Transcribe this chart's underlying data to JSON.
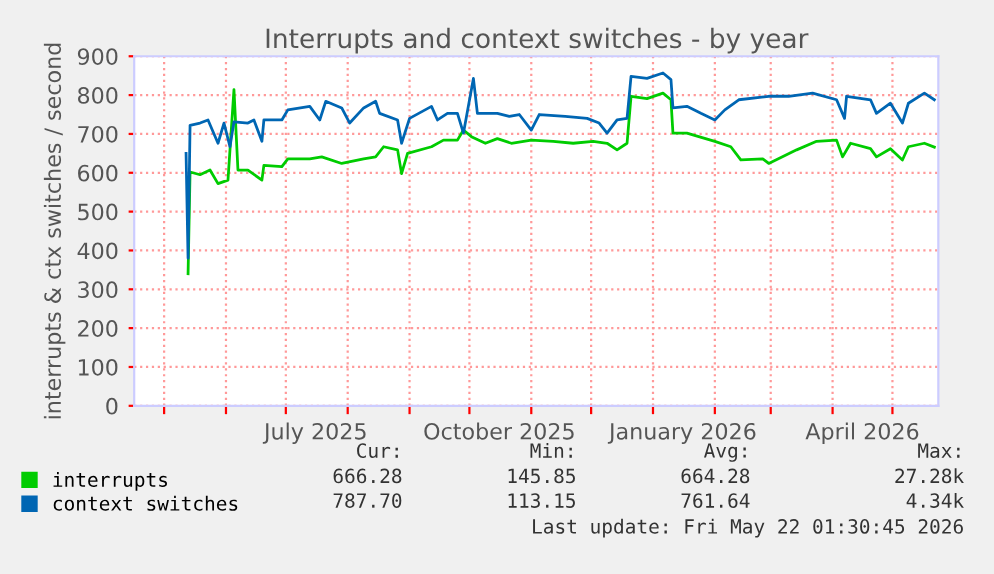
{
  "chart_data": {
    "type": "line",
    "title": "Interrupts and context switches - by year",
    "ylabel": "interrupts & ctx switches / second",
    "xlim": [
      "2025-04-16",
      "2026-05-24"
    ],
    "ylim": [
      0,
      900
    ],
    "yticks": [
      0,
      100,
      200,
      300,
      400,
      500,
      600,
      700,
      800,
      900
    ],
    "xticks": [
      {
        "value": "2025-05-01",
        "label": null
      },
      {
        "value": "2025-06-01",
        "label": null
      },
      {
        "value": "2025-07-01",
        "label": null
      },
      {
        "value": "2025-07-16",
        "label": "July 2025"
      },
      {
        "value": "2025-08-01",
        "label": null
      },
      {
        "value": "2025-09-01",
        "label": null
      },
      {
        "value": "2025-10-01",
        "label": null
      },
      {
        "value": "2025-10-16",
        "label": "October 2025"
      },
      {
        "value": "2025-11-01",
        "label": null
      },
      {
        "value": "2025-12-01",
        "label": null
      },
      {
        "value": "2026-01-01",
        "label": null
      },
      {
        "value": "2026-01-16",
        "label": "January 2026"
      },
      {
        "value": "2026-02-01",
        "label": null
      },
      {
        "value": "2026-03-01",
        "label": null
      },
      {
        "value": "2026-04-01",
        "label": null
      },
      {
        "value": "2026-04-16",
        "label": "April 2026"
      },
      {
        "value": "2026-05-01",
        "label": null
      }
    ],
    "grid": true,
    "legend": "bottom",
    "marker": "none",
    "line_style": "solid",
    "series": [
      {
        "name": "interrupts",
        "color": "#00cc00",
        "x": [
          "2025-05-13",
          "2025-05-14",
          "2025-05-19",
          "2025-05-24",
          "2025-05-28",
          "2025-06-02",
          "2025-06-05",
          "2025-06-07",
          "2025-06-12",
          "2025-06-19",
          "2025-06-20",
          "2025-06-29",
          "2025-07-02",
          "2025-07-13",
          "2025-07-19",
          "2025-07-29",
          "2025-08-09",
          "2025-08-15",
          "2025-08-19",
          "2025-08-26",
          "2025-08-28",
          "2025-08-31",
          "2025-09-12",
          "2025-09-18",
          "2025-09-25",
          "2025-09-28",
          "2025-10-02",
          "2025-10-09",
          "2025-10-15",
          "2025-10-22",
          "2025-11-01",
          "2025-11-12",
          "2025-11-22",
          "2025-12-02",
          "2025-12-09",
          "2025-12-14",
          "2025-12-19",
          "2025-12-21",
          "2025-12-29",
          "2026-01-06",
          "2026-01-10",
          "2026-01-11",
          "2026-01-18",
          "2026-02-01",
          "2026-02-09",
          "2026-02-14",
          "2026-02-25",
          "2026-02-28",
          "2026-03-14",
          "2026-03-24",
          "2026-04-03",
          "2026-04-06",
          "2026-04-10",
          "2026-04-20",
          "2026-04-23",
          "2026-04-30",
          "2026-05-06",
          "2026-05-09",
          "2026-05-17",
          "2026-05-22"
        ],
        "values": [
          340,
          602,
          595,
          607,
          572,
          581,
          814,
          607,
          607,
          581,
          619,
          616,
          636,
          636,
          641,
          624,
          636,
          641,
          667,
          659,
          598,
          650,
          667,
          684,
          684,
          710,
          693,
          676,
          688,
          676,
          684,
          681,
          676,
          681,
          676,
          659,
          676,
          797,
          791,
          805,
          788,
          702,
          702,
          681,
          667,
          633,
          636,
          624,
          659,
          681,
          684,
          641,
          676,
          662,
          641,
          662,
          633,
          667,
          676,
          666
        ]
      },
      {
        "name": "context switches",
        "color": "#0066b3",
        "x": [
          "2025-05-12",
          "2025-05-13",
          "2025-05-14",
          "2025-05-19",
          "2025-05-23",
          "2025-05-28",
          "2025-05-31",
          "2025-06-03",
          "2025-06-05",
          "2025-06-12",
          "2025-06-15",
          "2025-06-19",
          "2025-06-20",
          "2025-06-29",
          "2025-07-02",
          "2025-07-13",
          "2025-07-18",
          "2025-07-21",
          "2025-07-29",
          "2025-08-02",
          "2025-08-09",
          "2025-08-15",
          "2025-08-17",
          "2025-08-26",
          "2025-08-28",
          "2025-09-01",
          "2025-09-12",
          "2025-09-15",
          "2025-09-20",
          "2025-09-25",
          "2025-09-28",
          "2025-10-03",
          "2025-10-05",
          "2025-10-15",
          "2025-10-21",
          "2025-10-26",
          "2025-11-01",
          "2025-11-05",
          "2025-11-18",
          "2025-11-29",
          "2025-12-05",
          "2025-12-09",
          "2025-12-14",
          "2025-12-19",
          "2025-12-21",
          "2025-12-29",
          "2026-01-06",
          "2026-01-10",
          "2026-01-11",
          "2026-01-18",
          "2026-01-25",
          "2026-02-01",
          "2026-02-06",
          "2026-02-13",
          "2026-02-28",
          "2026-03-10",
          "2026-03-22",
          "2026-04-03",
          "2026-04-07",
          "2026-04-08",
          "2026-04-20",
          "2026-04-23",
          "2026-04-30",
          "2026-05-06",
          "2026-05-09",
          "2026-05-17",
          "2026-05-22"
        ],
        "values": [
          650,
          380,
          722,
          728,
          736,
          676,
          728,
          667,
          731,
          728,
          736,
          681,
          736,
          736,
          762,
          771,
          736,
          784,
          767,
          728,
          767,
          784,
          753,
          736,
          676,
          740,
          771,
          736,
          753,
          753,
          702,
          843,
          753,
          753,
          745,
          750,
          710,
          750,
          745,
          740,
          728,
          702,
          736,
          740,
          848,
          843,
          857,
          840,
          767,
          771,
          753,
          736,
          762,
          788,
          797,
          797,
          805,
          788,
          740,
          797,
          788,
          753,
          779,
          728,
          779,
          805,
          788
        ]
      }
    ],
    "annotations": [
      "Cur:",
      "Min:",
      "Avg:",
      "Max:",
      "666.28",
      "145.85",
      "664.28",
      "27.28k",
      "787.70",
      "113.15",
      "761.64",
      "4.34k",
      "Last update: Fri May 22 01:30:45 2026"
    ]
  }
}
